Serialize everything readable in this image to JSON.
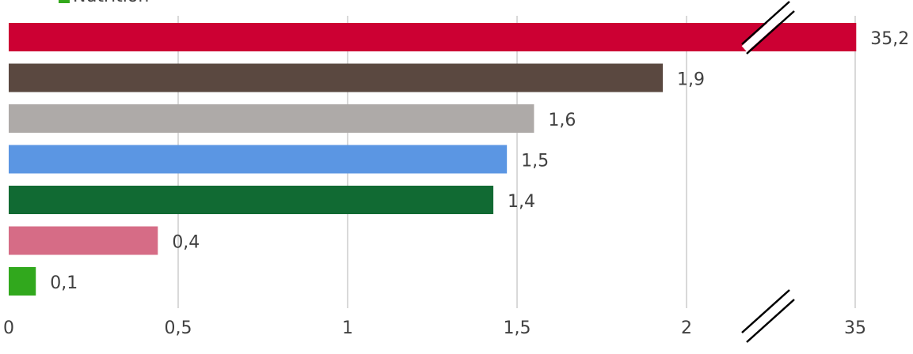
{
  "chart_data": {
    "type": "bar",
    "orientation": "horizontal",
    "legend": {
      "placement": "top-left",
      "visible_entry": "Nutrition",
      "visible_entry_color": "#34a91c"
    },
    "broken_axis": true,
    "x_ticks": [
      "0",
      "0,5",
      "1",
      "1,5",
      "2",
      "35"
    ],
    "x_tick_values": [
      0,
      0.5,
      1,
      1.5,
      2,
      35
    ],
    "xlim": [
      0,
      35.2
    ],
    "grid": true,
    "bars": [
      {
        "value": 35.2,
        "label": "35,2",
        "color": "#cc0033"
      },
      {
        "value": 1.93,
        "label": "1,9",
        "color": "#5a4840"
      },
      {
        "value": 1.55,
        "label": "1,6",
        "color": "#aeaaa8"
      },
      {
        "value": 1.47,
        "label": "1,5",
        "color": "#5b96e3"
      },
      {
        "value": 1.43,
        "label": "1,4",
        "color": "#116a33"
      },
      {
        "value": 0.44,
        "label": "0,4",
        "color": "#d66c86"
      },
      {
        "value": 0.08,
        "label": "0,1",
        "color": "#31a81d"
      }
    ]
  }
}
